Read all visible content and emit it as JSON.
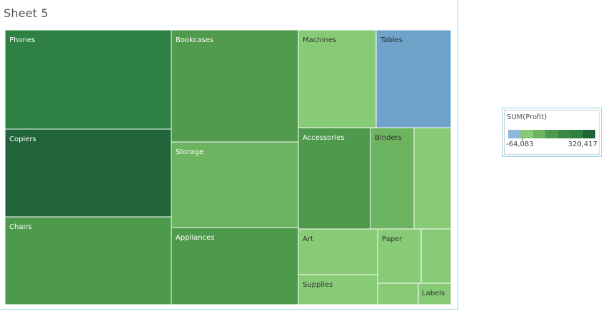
{
  "sheet": {
    "title": "Sheet 5"
  },
  "chart_data": {
    "type": "treemap",
    "measure": "SUM(Profit)",
    "cells": [
      {
        "label": "Phones",
        "color": "#2f8143"
      },
      {
        "label": "Copiers",
        "color": "#21643a"
      },
      {
        "label": "Chairs",
        "color": "#4e9a4c"
      },
      {
        "label": "Bookcases",
        "color": "#509b4d"
      },
      {
        "label": "Storage",
        "color": "#6cb460"
      },
      {
        "label": "Appliances",
        "color": "#4e9a4c"
      },
      {
        "label": "Machines",
        "color": "#88cb77",
        "text": "dark"
      },
      {
        "label": "Tables",
        "color": "#6fa3c9",
        "text": "dark"
      },
      {
        "label": "Accessories",
        "color": "#4e9a4c"
      },
      {
        "label": "Binders",
        "color": "#6cb460",
        "text": "dark"
      },
      {
        "label": "",
        "color": "#88cb77"
      },
      {
        "label": "Art",
        "color": "#88cb77",
        "text": "dark"
      },
      {
        "label": "Supplies",
        "color": "#88cb77",
        "text": "dark"
      },
      {
        "label": "Paper",
        "color": "#88cb77",
        "text": "dark"
      },
      {
        "label": "",
        "color": "#88cb77"
      },
      {
        "label": "",
        "color": "#88cb77"
      },
      {
        "label": "Labels",
        "color": "#88cb77",
        "text": "dark"
      }
    ],
    "legend": {
      "title": "SUM(Profit)",
      "min_label": "-64,083",
      "max_label": "320,417",
      "ramp_colors": [
        "#8fb8db",
        "#88cb77",
        "#6cb460",
        "#4e9a4c",
        "#3a8a45",
        "#2f8143",
        "#21643a"
      ]
    }
  }
}
